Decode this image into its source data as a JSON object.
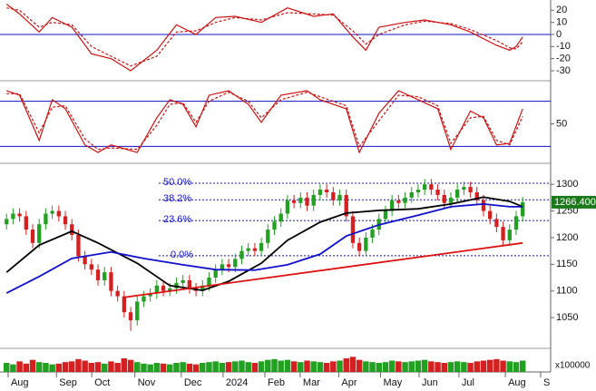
{
  "chart_data": [
    {
      "type": "line",
      "ylim": [
        -37.5,
        28.5
      ],
      "yticks": [
        20,
        10,
        0,
        -10,
        -20,
        -30
      ],
      "levels": [
        0
      ],
      "xlim": [
        -1,
        83
      ],
      "series": [
        {
          "color": "#cc1111",
          "dash": false,
          "x": [
            0,
            2,
            5,
            7,
            10,
            13,
            16,
            19,
            23,
            26,
            29,
            32,
            35,
            39,
            43,
            47,
            50,
            53,
            55,
            57,
            61,
            64,
            68,
            71,
            75,
            77,
            78,
            79
          ],
          "values": [
            25,
            17,
            2,
            14,
            6,
            -16,
            -20,
            -30,
            -13,
            8,
            0,
            14,
            15,
            10,
            22,
            15,
            17,
            -2,
            -13,
            6,
            10,
            12,
            8,
            2,
            -9,
            -13,
            -10,
            -2
          ]
        },
        {
          "color": "#cc1111",
          "dash": true,
          "x": [
            0,
            2,
            5,
            7,
            10,
            13,
            16,
            19,
            23,
            26,
            29,
            32,
            35,
            39,
            43,
            47,
            50,
            53,
            55,
            57,
            61,
            64,
            68,
            71,
            75,
            77,
            78,
            79
          ],
          "values": [
            22,
            20,
            6,
            10,
            8,
            -10,
            -18,
            -26,
            -18,
            2,
            3,
            10,
            14,
            12,
            18,
            17,
            16,
            3,
            -8,
            0,
            8,
            11,
            9,
            4,
            -5,
            -11,
            -12,
            -6
          ]
        }
      ]
    },
    {
      "type": "line",
      "ylim": [
        0,
        100
      ],
      "yticks": [
        50
      ],
      "levels": [
        20,
        80
      ],
      "xlim": [
        -1,
        83
      ],
      "series": [
        {
          "color": "#cc1111",
          "dash": false,
          "x": [
            0,
            2,
            5,
            7,
            9,
            12,
            14,
            16,
            20,
            23,
            25,
            27,
            29,
            31,
            34,
            37,
            39,
            42,
            46,
            48,
            52,
            54,
            57,
            60,
            63,
            66,
            68,
            71,
            73,
            75,
            77,
            79
          ],
          "values": [
            94,
            88,
            28,
            82,
            70,
            22,
            12,
            22,
            12,
            58,
            82,
            76,
            46,
            88,
            94,
            76,
            52,
            88,
            94,
            82,
            70,
            12,
            64,
            94,
            82,
            70,
            16,
            67,
            58,
            22,
            24,
            70
          ]
        },
        {
          "color": "#cc1111",
          "dash": true,
          "x": [
            0,
            2,
            5,
            7,
            9,
            12,
            14,
            16,
            20,
            23,
            25,
            27,
            29,
            31,
            34,
            37,
            39,
            42,
            46,
            48,
            52,
            54,
            57,
            60,
            63,
            66,
            68,
            71,
            73,
            75,
            77,
            79
          ],
          "values": [
            90,
            90,
            38,
            72,
            74,
            30,
            16,
            18,
            16,
            48,
            76,
            78,
            52,
            80,
            92,
            80,
            58,
            82,
            92,
            86,
            74,
            20,
            54,
            88,
            86,
            74,
            24,
            58,
            60,
            28,
            22,
            60
          ]
        }
      ]
    },
    {
      "type": "candlestick",
      "ylim": [
        994,
        1336
      ],
      "yticks": [
        1300,
        1250,
        1200,
        1150,
        1100,
        1050
      ],
      "xlim": [
        -1,
        83
      ],
      "up_color": "#22a022",
      "down_color": "#d42020",
      "open": [
        1225,
        1235,
        1245,
        1240,
        1215,
        1190,
        1225,
        1245,
        1250,
        1240,
        1225,
        1205,
        1165,
        1150,
        1140,
        1120,
        1135,
        1100,
        1090,
        1060,
        1045,
        1080,
        1090,
        1095,
        1110,
        1100,
        1105,
        1115,
        1120,
        1105,
        1100,
        1110,
        1125,
        1140,
        1150,
        1145,
        1160,
        1175,
        1180,
        1175,
        1190,
        1215,
        1230,
        1245,
        1270,
        1265,
        1275,
        1260,
        1280,
        1290,
        1285,
        1270,
        1280,
        1240,
        1190,
        1175,
        1200,
        1215,
        1235,
        1250,
        1270,
        1265,
        1275,
        1285,
        1290,
        1300,
        1290,
        1280,
        1265,
        1275,
        1290,
        1295,
        1285,
        1270,
        1250,
        1235,
        1220,
        1195,
        1215,
        1240
      ],
      "high": [
        1245,
        1255,
        1255,
        1250,
        1225,
        1235,
        1255,
        1260,
        1260,
        1250,
        1235,
        1215,
        1175,
        1160,
        1150,
        1145,
        1145,
        1110,
        1100,
        1070,
        1090,
        1100,
        1105,
        1120,
        1120,
        1115,
        1125,
        1130,
        1130,
        1115,
        1120,
        1135,
        1150,
        1160,
        1160,
        1170,
        1185,
        1190,
        1190,
        1200,
        1225,
        1240,
        1255,
        1280,
        1280,
        1285,
        1285,
        1290,
        1300,
        1300,
        1295,
        1290,
        1290,
        1250,
        1200,
        1210,
        1225,
        1245,
        1260,
        1280,
        1280,
        1285,
        1295,
        1300,
        1310,
        1310,
        1300,
        1290,
        1285,
        1300,
        1305,
        1305,
        1295,
        1280,
        1260,
        1245,
        1230,
        1225,
        1250,
        1276
      ],
      "low": [
        1215,
        1225,
        1230,
        1205,
        1180,
        1180,
        1215,
        1235,
        1230,
        1215,
        1195,
        1155,
        1140,
        1130,
        1110,
        1110,
        1090,
        1080,
        1050,
        1025,
        1035,
        1070,
        1080,
        1085,
        1090,
        1090,
        1095,
        1105,
        1095,
        1090,
        1090,
        1100,
        1115,
        1130,
        1135,
        1135,
        1150,
        1165,
        1165,
        1165,
        1180,
        1205,
        1220,
        1235,
        1255,
        1255,
        1250,
        1250,
        1270,
        1275,
        1260,
        1260,
        1230,
        1180,
        1165,
        1165,
        1190,
        1205,
        1225,
        1240,
        1255,
        1255,
        1265,
        1275,
        1280,
        1280,
        1270,
        1255,
        1255,
        1265,
        1280,
        1275,
        1260,
        1240,
        1225,
        1210,
        1185,
        1185,
        1205,
        1230
      ],
      "close": [
        1235,
        1245,
        1240,
        1215,
        1190,
        1225,
        1245,
        1250,
        1240,
        1225,
        1205,
        1165,
        1150,
        1140,
        1120,
        1135,
        1100,
        1090,
        1060,
        1045,
        1080,
        1090,
        1095,
        1110,
        1100,
        1105,
        1115,
        1120,
        1105,
        1100,
        1110,
        1125,
        1140,
        1150,
        1145,
        1160,
        1175,
        1180,
        1175,
        1190,
        1215,
        1230,
        1245,
        1270,
        1265,
        1275,
        1260,
        1280,
        1290,
        1285,
        1270,
        1280,
        1240,
        1190,
        1175,
        1200,
        1215,
        1235,
        1250,
        1270,
        1265,
        1275,
        1285,
        1290,
        1300,
        1290,
        1280,
        1265,
        1275,
        1290,
        1295,
        1285,
        1270,
        1250,
        1235,
        1220,
        1195,
        1215,
        1240,
        1266.4
      ],
      "last_value": 1266.4,
      "last_label": "1266.400",
      "fib_levels": [
        {
          "label": "50.0%",
          "value": 1302
        },
        {
          "label": "38.2%",
          "value": 1271
        },
        {
          "label": "23.6%",
          "value": 1232
        },
        {
          "label": "0.0%",
          "value": 1166
        }
      ],
      "lines": [
        {
          "color": "#000000",
          "x": [
            0,
            5,
            10,
            14,
            20,
            25,
            30,
            34,
            39,
            43,
            48,
            52,
            57,
            63,
            68,
            73,
            77,
            79
          ],
          "values": [
            1135,
            1186,
            1212,
            1190,
            1152,
            1110,
            1101,
            1118,
            1152,
            1195,
            1229,
            1246,
            1251,
            1254,
            1263,
            1276,
            1268,
            1258
          ]
        },
        {
          "color": "#1010cc",
          "x": [
            0,
            5,
            10,
            16,
            21,
            27,
            32,
            38,
            43,
            48,
            52,
            57,
            63,
            68,
            73,
            77,
            79
          ],
          "values": [
            1096,
            1127,
            1161,
            1173,
            1161,
            1149,
            1140,
            1139,
            1149,
            1169,
            1203,
            1224,
            1242,
            1258,
            1263,
            1258,
            1258
          ]
        },
        {
          "color": "#dd1111",
          "x": [
            18,
            79
          ],
          "values": [
            1088,
            1190
          ]
        }
      ]
    },
    {
      "type": "bar",
      "ylim": [
        0,
        30
      ],
      "xlim": [
        -1,
        83
      ],
      "unit": "x100000",
      "values": [
        12,
        10,
        14,
        11,
        16,
        13,
        12,
        10,
        11,
        13,
        14,
        17,
        15,
        12,
        13,
        11,
        14,
        12,
        18,
        16,
        13,
        11,
        10,
        12,
        11,
        10,
        12,
        13,
        11,
        10,
        12,
        13,
        14,
        12,
        13,
        14,
        15,
        13,
        12,
        14,
        16,
        17,
        15,
        16,
        14,
        13,
        15,
        14,
        13,
        12,
        14,
        15,
        18,
        20,
        16,
        14,
        13,
        12,
        13,
        15,
        14,
        13,
        14,
        15,
        16,
        14,
        13,
        12,
        13,
        14,
        13,
        12,
        14,
        15,
        16,
        17,
        15,
        14,
        13,
        15
      ],
      "xticks": [
        {
          "value": 0.8,
          "label": "Aug"
        },
        {
          "value": 8.2,
          "label": "Sep"
        },
        {
          "value": 13.6,
          "label": "Oct"
        },
        {
          "value": 20.2,
          "label": "Nov"
        },
        {
          "value": 27.3,
          "label": "Dec"
        },
        {
          "value": 33.7,
          "label": "2024"
        },
        {
          "value": 40.1,
          "label": "Feb"
        },
        {
          "value": 45.5,
          "label": "Mar"
        },
        {
          "value": 51.4,
          "label": "Apr"
        },
        {
          "value": 57.8,
          "label": "May"
        },
        {
          "value": 63.7,
          "label": "Jun"
        },
        {
          "value": 69.8,
          "label": "Jul"
        },
        {
          "value": 76.9,
          "label": "Aug"
        },
        {
          "value": 82.3,
          "label": "S"
        }
      ]
    }
  ]
}
